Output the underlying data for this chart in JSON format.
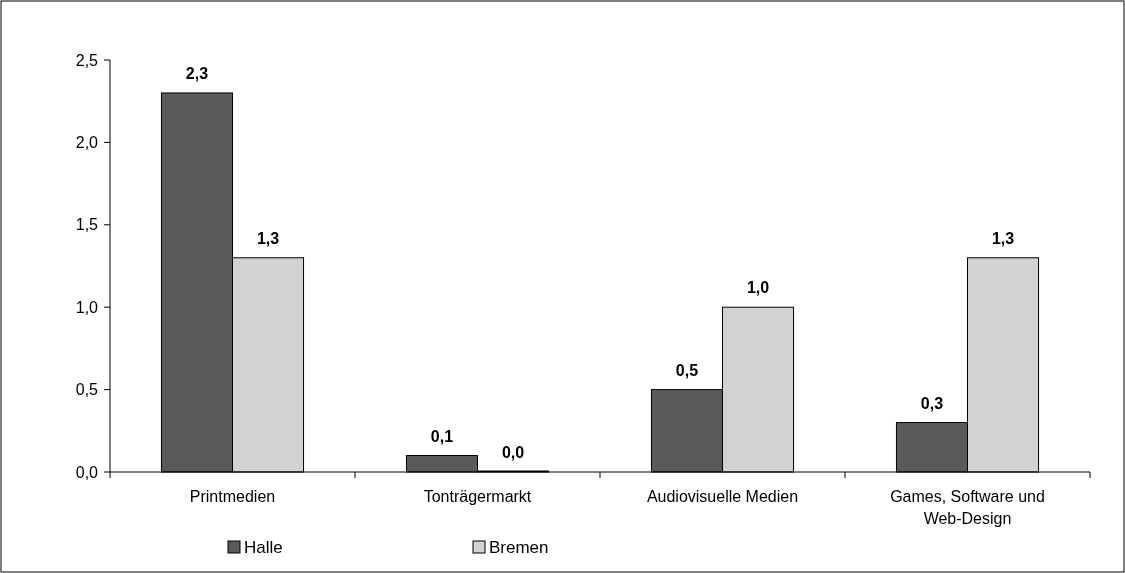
{
  "chart_data": {
    "type": "bar",
    "categories": [
      "Printmedien",
      "Tonträgermarkt",
      "Audiovisuelle Medien",
      "Games, Software und Web-Design"
    ],
    "series": [
      {
        "name": "Halle",
        "color": "#5a5a5a",
        "values": [
          2.3,
          0.1,
          0.5,
          0.3
        ],
        "value_labels": [
          "2,3",
          "0,1",
          "0,5",
          "0,3"
        ]
      },
      {
        "name": "Bremen",
        "color": "#d2d2d2",
        "values": [
          1.3,
          0.0,
          1.0,
          1.3
        ],
        "value_labels": [
          "1,3",
          "0,0",
          "1,0",
          "1,3"
        ]
      }
    ],
    "ylim": [
      0,
      2.5
    ],
    "yticks": [
      {
        "value": 0,
        "label": "0,0"
      },
      {
        "value": 0.5,
        "label": "0,5"
      },
      {
        "value": 1,
        "label": "1,0"
      },
      {
        "value": 1.5,
        "label": "1,5"
      },
      {
        "value": 2,
        "label": "2,0"
      },
      {
        "value": 2.5,
        "label": "2,5"
      }
    ],
    "legend": "bottom"
  }
}
